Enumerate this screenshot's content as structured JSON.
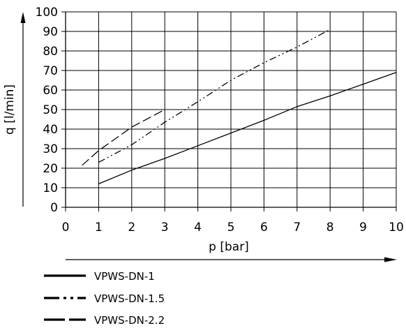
{
  "chart_data": {
    "type": "line",
    "xlabel": "p [bar]",
    "ylabel": "q [l/min]",
    "xlim": [
      0,
      10
    ],
    "ylim": [
      0,
      100
    ],
    "x_ticks": [
      0,
      1,
      2,
      3,
      4,
      5,
      6,
      7,
      8,
      9,
      10
    ],
    "y_ticks": [
      0,
      10,
      20,
      30,
      40,
      50,
      60,
      70,
      80,
      90,
      100
    ],
    "x_tick_labels": [
      "0",
      "1",
      "2",
      "3",
      "4",
      "5",
      "6",
      "7",
      "8",
      "9",
      "10"
    ],
    "y_tick_labels": [
      "0",
      "10",
      "20",
      "30",
      "40",
      "50",
      "60",
      "70",
      "80",
      "90",
      "100"
    ],
    "grid": true,
    "legend_position": "bottom-left",
    "series": [
      {
        "name": "VPWS-DN-1",
        "style": "solid",
        "color": "#000000",
        "points": [
          [
            1,
            12
          ],
          [
            2,
            19
          ],
          [
            3,
            25
          ],
          [
            4,
            31.5
          ],
          [
            5,
            38
          ],
          [
            6,
            44.5
          ],
          [
            7,
            51.5
          ],
          [
            8,
            57
          ],
          [
            9,
            63
          ],
          [
            10,
            69
          ]
        ]
      },
      {
        "name": "VPWS-DN-1.5",
        "style": "dash-dot-dot",
        "color": "#000000",
        "points": [
          [
            1,
            23
          ],
          [
            2,
            32
          ],
          [
            3,
            43.5
          ],
          [
            4,
            54
          ],
          [
            5,
            65
          ],
          [
            6,
            74
          ],
          [
            7,
            82
          ],
          [
            8,
            91
          ]
        ]
      },
      {
        "name": "VPWS-DN-2.2",
        "style": "long-dash",
        "color": "#000000",
        "points": [
          [
            0.5,
            21.5
          ],
          [
            1,
            29
          ],
          [
            2,
            41
          ],
          [
            3,
            50
          ]
        ]
      }
    ]
  }
}
